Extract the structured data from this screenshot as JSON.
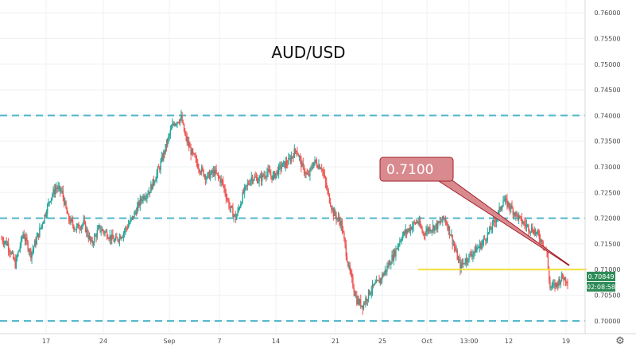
{
  "colors": {
    "up": "#26a69a",
    "down": "#ef5350",
    "hline": "#4fb6c9",
    "support": "#f5df3c",
    "trendline": "#a3202a",
    "callout_fill": "#d98a8e",
    "callout_stroke": "#a3202a",
    "grid": "#eef0f3",
    "price_tag": "#2e8b57"
  },
  "chart_data": {
    "type": "candlestick",
    "title": "AUD/USD",
    "ylim": [
      0.6975,
      0.7625
    ],
    "y_ticks": [
      "0.76000",
      "0.75500",
      "0.75000",
      "0.74500",
      "0.74000",
      "0.73500",
      "0.73000",
      "0.72500",
      "0.72000",
      "0.71500",
      "0.71000",
      "0.70500",
      "0.70000"
    ],
    "x_ticks": [
      "17",
      "24",
      "Sep",
      "7",
      "14",
      "21",
      "25",
      "Oct",
      "13:00",
      "12",
      "19"
    ],
    "reference_levels": [
      0.74,
      0.72,
      0.7
    ],
    "support_level": 0.71,
    "annotation": "0.7100",
    "last_price": "0.70849",
    "countdown": "02:08:58",
    "series_anchors": [
      [
        0,
        0.716
      ],
      [
        6,
        0.715
      ],
      [
        14,
        0.711
      ],
      [
        22,
        0.717
      ],
      [
        30,
        0.713
      ],
      [
        38,
        0.717
      ],
      [
        50,
        0.724
      ],
      [
        56,
        0.726
      ],
      [
        62,
        0.725
      ],
      [
        68,
        0.72
      ],
      [
        76,
        0.718
      ],
      [
        84,
        0.719
      ],
      [
        92,
        0.715
      ],
      [
        100,
        0.718
      ],
      [
        108,
        0.717
      ],
      [
        116,
        0.7155
      ],
      [
        124,
        0.717
      ],
      [
        134,
        0.72
      ],
      [
        144,
        0.724
      ],
      [
        152,
        0.7255
      ],
      [
        162,
        0.73
      ],
      [
        170,
        0.735
      ],
      [
        176,
        0.7385
      ],
      [
        184,
        0.7395
      ],
      [
        188,
        0.736
      ],
      [
        194,
        0.733
      ],
      [
        202,
        0.73
      ],
      [
        210,
        0.728
      ],
      [
        218,
        0.729
      ],
      [
        226,
        0.727
      ],
      [
        234,
        0.722
      ],
      [
        240,
        0.72
      ],
      [
        248,
        0.725
      ],
      [
        256,
        0.728
      ],
      [
        264,
        0.7275
      ],
      [
        272,
        0.729
      ],
      [
        278,
        0.728
      ],
      [
        286,
        0.73
      ],
      [
        294,
        0.731
      ],
      [
        302,
        0.7335
      ],
      [
        308,
        0.73
      ],
      [
        314,
        0.728
      ],
      [
        320,
        0.731
      ],
      [
        328,
        0.73
      ],
      [
        334,
        0.725
      ],
      [
        340,
        0.721
      ],
      [
        348,
        0.719
      ],
      [
        356,
        0.71
      ],
      [
        364,
        0.704
      ],
      [
        370,
        0.703
      ],
      [
        378,
        0.706
      ],
      [
        386,
        0.7075
      ],
      [
        394,
        0.71
      ],
      [
        402,
        0.713
      ],
      [
        410,
        0.7165
      ],
      [
        418,
        0.718
      ],
      [
        426,
        0.7195
      ],
      [
        432,
        0.717
      ],
      [
        438,
        0.718
      ],
      [
        446,
        0.7185
      ],
      [
        454,
        0.72
      ],
      [
        460,
        0.717
      ],
      [
        466,
        0.713
      ],
      [
        470,
        0.7105
      ],
      [
        476,
        0.712
      ],
      [
        484,
        0.7135
      ],
      [
        492,
        0.715
      ],
      [
        500,
        0.7175
      ],
      [
        508,
        0.7205
      ],
      [
        514,
        0.7235
      ],
      [
        520,
        0.7225
      ],
      [
        526,
        0.721
      ],
      [
        532,
        0.7195
      ],
      [
        538,
        0.7185
      ],
      [
        546,
        0.7175
      ],
      [
        552,
        0.716
      ],
      [
        558,
        0.714
      ],
      [
        562,
        0.7065
      ],
      [
        568,
        0.707
      ],
      [
        574,
        0.7085
      ],
      [
        580,
        0.708
      ]
    ]
  }
}
